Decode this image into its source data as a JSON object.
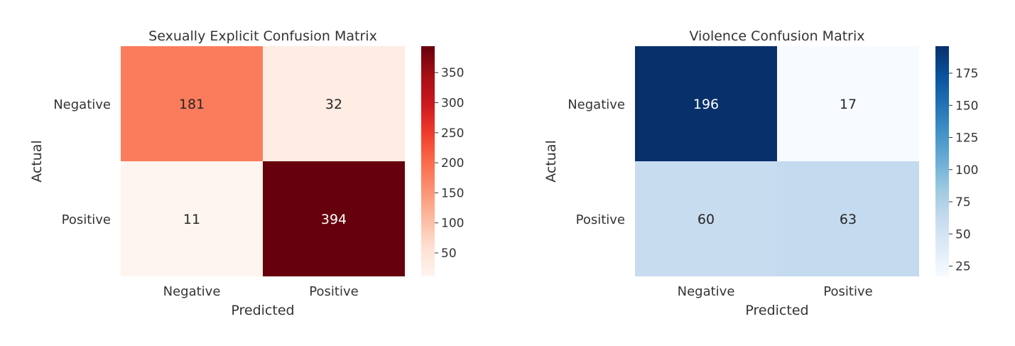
{
  "chart_data": [
    {
      "type": "heatmap",
      "title": "Sexually Explicit Confusion Matrix",
      "xlabel": "Predicted",
      "ylabel": "Actual",
      "x_categories": [
        "Negative",
        "Positive"
      ],
      "y_categories": [
        "Negative",
        "Positive"
      ],
      "values": [
        [
          181,
          32
        ],
        [
          11,
          394
        ]
      ],
      "colormap": "Reds",
      "colors": {
        "low": "#fff5f0",
        "high": "#67000d"
      },
      "vmin": 11,
      "vmax": 394,
      "colorbar_ticks": [
        50,
        100,
        150,
        200,
        250,
        300,
        350
      ]
    },
    {
      "type": "heatmap",
      "title": "Violence Confusion Matrix",
      "xlabel": "Predicted",
      "ylabel": "Actual",
      "x_categories": [
        "Negative",
        "Positive"
      ],
      "y_categories": [
        "Negative",
        "Positive"
      ],
      "values": [
        [
          196,
          17
        ],
        [
          60,
          63
        ]
      ],
      "colormap": "Blues",
      "colors": {
        "low": "#f7fbff",
        "high": "#08306b"
      },
      "vmin": 17,
      "vmax": 196,
      "colorbar_ticks": [
        25,
        50,
        75,
        100,
        125,
        150,
        175
      ]
    }
  ]
}
